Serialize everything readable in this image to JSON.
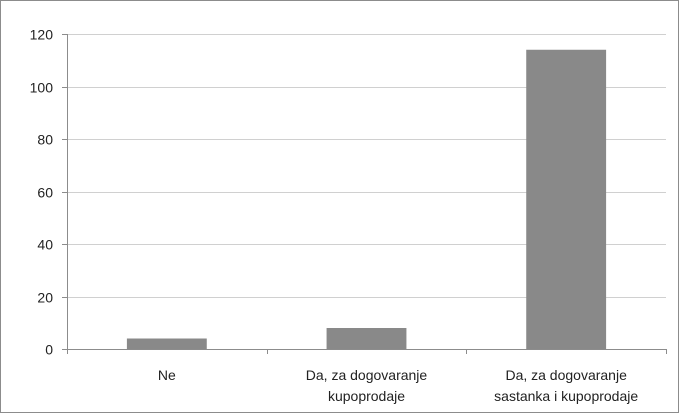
{
  "chart_data": {
    "type": "bar",
    "title": "",
    "xlabel": "",
    "ylabel": "",
    "categories": [
      [
        "Ne"
      ],
      [
        "Da, za dogovaranje",
        "kupoprodaje"
      ],
      [
        "Da, za dogovaranje",
        "sastanka i kupoprodaje"
      ]
    ],
    "values": [
      4,
      8,
      114
    ],
    "ylim": [
      0,
      120
    ],
    "yticks": [
      0,
      20,
      40,
      60,
      80,
      100,
      120
    ],
    "grid": true,
    "legend": "none",
    "bar_color": "#898989",
    "grid_color": "#d0d0d0",
    "axis_color": "#8c8c8c"
  }
}
